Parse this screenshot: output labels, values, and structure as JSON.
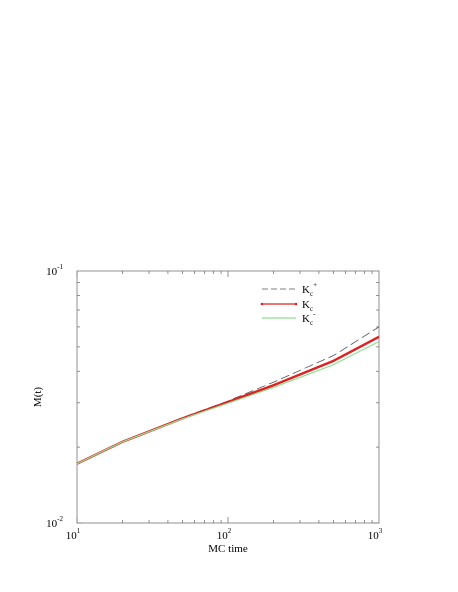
{
  "chart_data": {
    "type": "line",
    "title": "",
    "xlabel": "MC time",
    "ylabel": "M(t)",
    "xscale": "log",
    "yscale": "log",
    "xlim": [
      10,
      1000
    ],
    "ylim": [
      0.01,
      0.1
    ],
    "grid": false,
    "legend_position": "top-right",
    "x_ticks": [
      {
        "base": "10",
        "exp": "1"
      },
      {
        "base": "10",
        "exp": "2"
      },
      {
        "base": "10",
        "exp": "3"
      }
    ],
    "y_ticks": [
      {
        "base": "10",
        "exp": "-2"
      },
      {
        "base": "10",
        "exp": "-1"
      }
    ],
    "series": [
      {
        "legend_main": "K",
        "legend_sub": "c",
        "legend_sup": "+",
        "color": "#555555",
        "style": "dashed",
        "x": [
          10,
          20,
          50,
          100,
          200,
          500,
          1000
        ],
        "y": [
          0.0172,
          0.021,
          0.0262,
          0.0305,
          0.0362,
          0.0462,
          0.06
        ]
      },
      {
        "legend_main": "K",
        "legend_sub": "c",
        "legend_sup": "",
        "color": "#e02020",
        "style": "solid-thick",
        "x": [
          10,
          20,
          50,
          100,
          200,
          500,
          1000
        ],
        "y": [
          0.0172,
          0.021,
          0.026,
          0.0302,
          0.0352,
          0.044,
          0.0548
        ]
      },
      {
        "legend_main": "K",
        "legend_sub": "c",
        "legend_sup": "-",
        "color": "#90e090",
        "style": "solid",
        "x": [
          10,
          20,
          50,
          100,
          200,
          500,
          1000
        ],
        "y": [
          0.0172,
          0.021,
          0.0259,
          0.0299,
          0.0345,
          0.0425,
          0.0525
        ]
      }
    ]
  }
}
